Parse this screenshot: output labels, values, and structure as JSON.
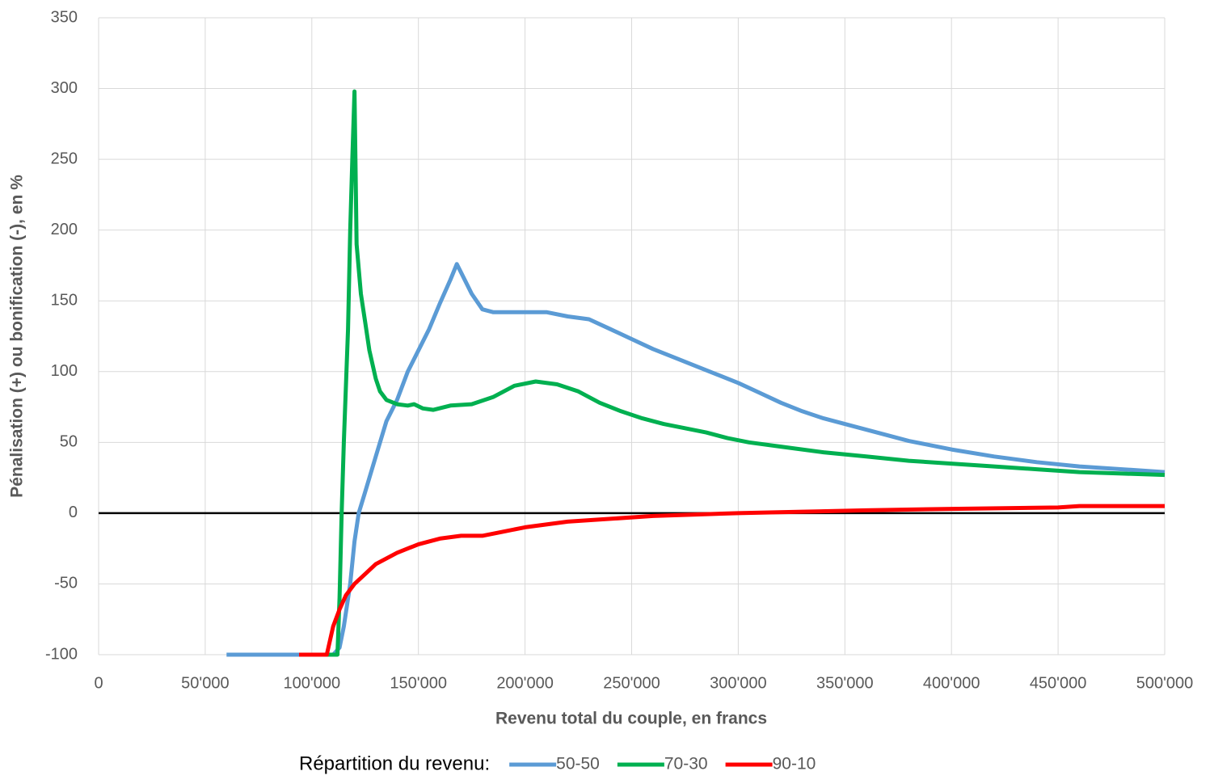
{
  "chart_data": {
    "type": "line",
    "xlabel": "Revenu total du couple, en francs",
    "ylabel": "Pénalisation (+) ou bonification (-), en %",
    "legend_title": "Répartition du revenu:",
    "legend": "bottom",
    "grid": true,
    "zero_line": true,
    "xlim": [
      0,
      500000
    ],
    "ylim": [
      -100,
      350
    ],
    "xticks": [
      0,
      {
        "value": 50000,
        "label": "50'000"
      },
      {
        "value": 100000,
        "label": "100'000"
      },
      {
        "value": 150000,
        "label": "150'000"
      },
      {
        "value": 200000,
        "label": "200'000"
      },
      {
        "value": 250000,
        "label": "250'000"
      },
      {
        "value": 300000,
        "label": "300'000"
      },
      {
        "value": 350000,
        "label": "350'000"
      },
      {
        "value": 400000,
        "label": "400'000"
      },
      {
        "value": 450000,
        "label": "450'000"
      },
      {
        "value": 500000,
        "label": "500'000"
      }
    ],
    "yticks": [
      -100,
      -50,
      0,
      50,
      100,
      150,
      200,
      250,
      300,
      350
    ],
    "series": [
      {
        "name": "50-50",
        "color": "#5b9bd5",
        "x": [
          60000,
          110000,
          113000,
          115000,
          118000,
          120000,
          122000,
          125000,
          130000,
          135000,
          140000,
          145000,
          150000,
          155000,
          160000,
          165000,
          168000,
          170000,
          175000,
          180000,
          185000,
          190000,
          200000,
          210000,
          220000,
          230000,
          240000,
          250000,
          260000,
          270000,
          280000,
          290000,
          300000,
          310000,
          320000,
          330000,
          340000,
          350000,
          360000,
          370000,
          380000,
          390000,
          400000,
          420000,
          440000,
          460000,
          480000,
          500000
        ],
        "values": [
          -100,
          -100,
          -95,
          -80,
          -50,
          -20,
          0,
          15,
          40,
          65,
          80,
          100,
          115,
          130,
          148,
          165,
          176,
          170,
          155,
          144,
          142,
          142,
          142,
          142,
          139,
          137,
          130,
          123,
          116,
          110,
          104,
          98,
          92,
          85,
          78,
          72,
          67,
          63,
          59,
          55,
          51,
          48,
          45,
          40,
          36,
          33,
          31,
          29
        ]
      },
      {
        "name": "70-30",
        "color": "#00b050",
        "x": [
          100000,
          112000,
          113000,
          114000,
          115000,
          117000,
          118000,
          119000,
          120000,
          121000,
          123000,
          125000,
          127000,
          130000,
          132000,
          135000,
          140000,
          145000,
          148000,
          152000,
          157000,
          165000,
          175000,
          185000,
          195000,
          205000,
          215000,
          225000,
          235000,
          245000,
          255000,
          265000,
          275000,
          285000,
          295000,
          305000,
          320000,
          340000,
          360000,
          380000,
          400000,
          420000,
          440000,
          460000,
          480000,
          500000
        ],
        "values": [
          -100,
          -100,
          -60,
          0,
          50,
          130,
          200,
          250,
          298,
          190,
          155,
          135,
          115,
          95,
          86,
          80,
          77,
          76,
          77,
          74,
          73,
          76,
          77,
          82,
          90,
          93,
          91,
          86,
          78,
          72,
          67,
          63,
          60,
          57,
          53,
          50,
          47,
          43,
          40,
          37,
          35,
          33,
          31,
          29,
          28,
          27
        ]
      },
      {
        "name": "90-10",
        "color": "#ff0000",
        "x": [
          94000,
          107000,
          110000,
          113000,
          116000,
          120000,
          125000,
          130000,
          135000,
          140000,
          150000,
          160000,
          170000,
          180000,
          190000,
          200000,
          210000,
          220000,
          240000,
          260000,
          280000,
          300000,
          330000,
          360000,
          400000,
          450000,
          460000,
          500000
        ],
        "values": [
          -100,
          -100,
          -80,
          -68,
          -58,
          -50,
          -43,
          -36,
          -32,
          -28,
          -22,
          -18,
          -16,
          -16,
          -13,
          -10,
          -8,
          -6,
          -4,
          -2,
          -1,
          0,
          1,
          2,
          3,
          4,
          5,
          5
        ]
      }
    ]
  }
}
